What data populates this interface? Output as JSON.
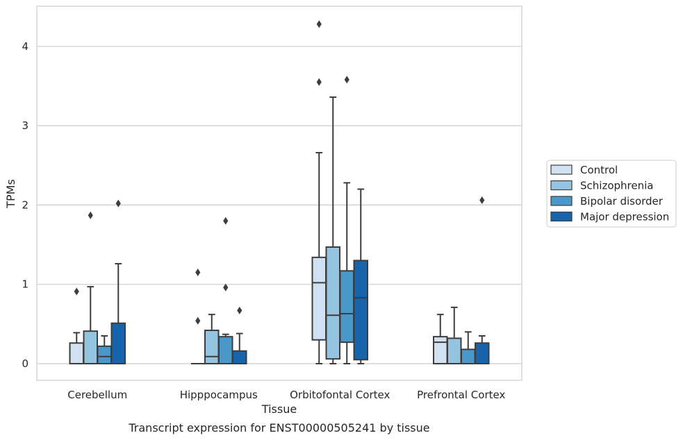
{
  "chart_data": {
    "type": "boxplot",
    "xlabel": "Tissue",
    "ylabel": "TPMs",
    "caption": "Transcript expression for ENST00000505241 by tissue",
    "ylim": [
      -0.2,
      4.5
    ],
    "yticks": [
      0,
      1,
      2,
      3,
      4
    ],
    "grid": true,
    "legend_position": "right",
    "categories": [
      "Cerebellum",
      "Hipppocampus",
      "Orbitofontal Cortex",
      "Prefrontal Cortex"
    ],
    "series": [
      {
        "name": "Control",
        "color": "#d0e1f2",
        "boxes": [
          {
            "whisker_low": 0,
            "q1": 0,
            "median": 0,
            "q3": 0.26,
            "whisker_high": 0.39,
            "outliers": [
              0.91
            ]
          },
          {
            "whisker_low": 0,
            "q1": 0,
            "median": 0,
            "q3": 0,
            "whisker_high": 0,
            "outliers": [
              0.54,
              1.15
            ]
          },
          {
            "whisker_low": 0,
            "q1": 0.3,
            "median": 1.02,
            "q3": 1.34,
            "whisker_high": 2.66,
            "outliers": [
              3.55,
              4.28
            ]
          },
          {
            "whisker_low": 0,
            "q1": 0,
            "median": 0.27,
            "q3": 0.34,
            "whisker_high": 0.62,
            "outliers": []
          }
        ]
      },
      {
        "name": "Schizophrenia",
        "color": "#94c4df",
        "boxes": [
          {
            "whisker_low": 0,
            "q1": 0,
            "median": 0,
            "q3": 0.41,
            "whisker_high": 0.97,
            "outliers": [
              1.87
            ]
          },
          {
            "whisker_low": 0,
            "q1": 0,
            "median": 0.09,
            "q3": 0.42,
            "whisker_high": 0.62,
            "outliers": []
          },
          {
            "whisker_low": 0,
            "q1": 0.06,
            "median": 0.61,
            "q3": 1.47,
            "whisker_high": 3.36,
            "outliers": []
          },
          {
            "whisker_low": 0,
            "q1": 0,
            "median": 0,
            "q3": 0.32,
            "whisker_high": 0.71,
            "outliers": []
          }
        ]
      },
      {
        "name": "Bipolar disorder",
        "color": "#4a98c9",
        "boxes": [
          {
            "whisker_low": 0,
            "q1": 0,
            "median": 0.09,
            "q3": 0.22,
            "whisker_high": 0.35,
            "outliers": []
          },
          {
            "whisker_low": 0,
            "q1": 0,
            "median": 0,
            "q3": 0.34,
            "whisker_high": 0.37,
            "outliers": [
              0.96,
              1.8
            ]
          },
          {
            "whisker_low": 0,
            "q1": 0.27,
            "median": 0.63,
            "q3": 1.17,
            "whisker_high": 2.28,
            "outliers": [
              3.58
            ]
          },
          {
            "whisker_low": 0,
            "q1": 0,
            "median": 0,
            "q3": 0.18,
            "whisker_high": 0.4,
            "outliers": []
          }
        ]
      },
      {
        "name": "Major depression",
        "color": "#1764ab",
        "boxes": [
          {
            "whisker_low": 0,
            "q1": 0,
            "median": 0,
            "q3": 0.51,
            "whisker_high": 1.26,
            "outliers": [
              2.02
            ]
          },
          {
            "whisker_low": 0,
            "q1": 0,
            "median": 0,
            "q3": 0.16,
            "whisker_high": 0.38,
            "outliers": [
              0.67
            ]
          },
          {
            "whisker_low": 0,
            "q1": 0.05,
            "median": 0.83,
            "q3": 1.3,
            "whisker_high": 2.2,
            "outliers": []
          },
          {
            "whisker_low": 0,
            "q1": 0,
            "median": 0,
            "q3": 0.26,
            "whisker_high": 0.35,
            "outliers": [
              2.06
            ]
          }
        ]
      }
    ]
  }
}
